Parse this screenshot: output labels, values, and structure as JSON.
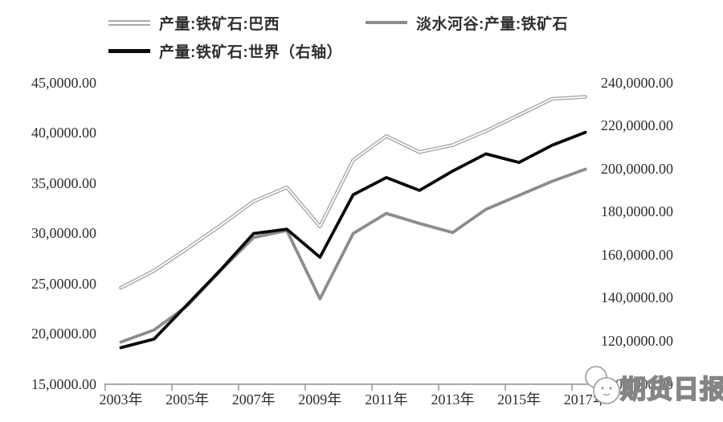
{
  "chart_data": {
    "type": "line",
    "x": [
      2003,
      2004,
      2005,
      2006,
      2007,
      2008,
      2009,
      2010,
      2011,
      2012,
      2013,
      2014,
      2015,
      2016,
      2017
    ],
    "series": [
      {
        "name": "产量:铁矿石:巴西",
        "axis": "left",
        "color": "#a8a8a8",
        "style": "double",
        "values": [
          246000,
          263000,
          285000,
          308000,
          332000,
          346000,
          307000,
          373000,
          397000,
          381000,
          388000,
          402000,
          418000,
          434000,
          436000
        ]
      },
      {
        "name": "淡水河谷:产量:铁矿石",
        "axis": "left",
        "color": "#8c8c8c",
        "style": "solid",
        "values": [
          192000,
          204000,
          228000,
          263000,
          296000,
          303000,
          235000,
          300000,
          320000,
          310000,
          301000,
          324000,
          338000,
          352000,
          364000
        ]
      },
      {
        "name": "产量:铁矿石:世界（右轴）",
        "axis": "right",
        "color": "#0a0a0a",
        "style": "solid",
        "values": [
          1170000,
          1210000,
          1370000,
          1530000,
          1700000,
          1720000,
          1590000,
          1880000,
          1960000,
          1900000,
          1990000,
          2070000,
          2030000,
          2110000,
          2170000
        ]
      }
    ],
    "left_axis": {
      "min": 150000,
      "max": 450000,
      "tick_step": 50000,
      "tick_labels": [
        "45,0000.00",
        "40,0000.00",
        "35,0000.00",
        "30,0000.00",
        "25,0000.00",
        "20,0000.00",
        "15,0000.00"
      ]
    },
    "right_axis": {
      "min": 1000000,
      "max": 2400000,
      "tick_step": 200000,
      "tick_labels": [
        "240,0000.00",
        "220,0000.00",
        "200,0000.00",
        "180,0000.00",
        "160,0000.00",
        "140,0000.00",
        "120,0000.00",
        "100,0000.00"
      ]
    },
    "x_axis": {
      "labels": [
        "2003年",
        "2005年",
        "2007年",
        "2009年",
        "2011年",
        "2013年",
        "2015年",
        "2017年"
      ]
    },
    "grid": false,
    "legend_position": "top"
  },
  "watermark": {
    "text": "期货日报"
  },
  "colors": {
    "axis_line": "#8f8f8f",
    "axis_text": "#2e2e2e"
  }
}
